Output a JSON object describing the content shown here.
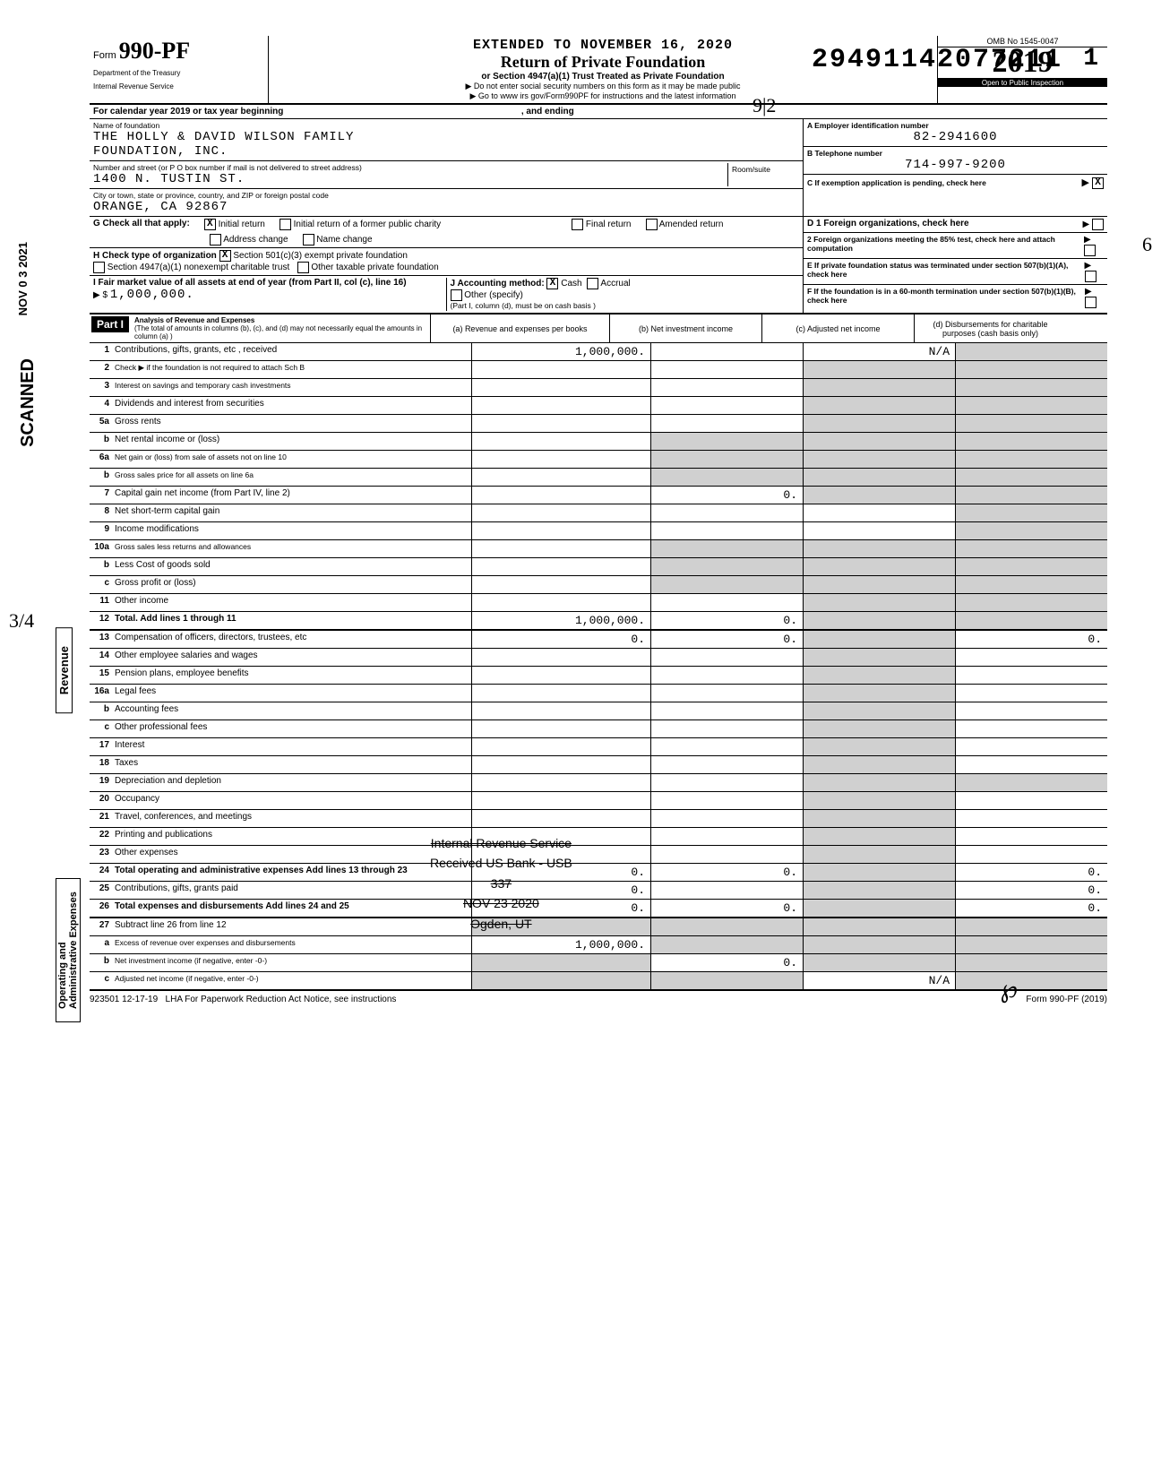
{
  "dln": "29491142077211",
  "page_num": "1",
  "header": {
    "form_prefix": "Form",
    "form_number": "990-PF",
    "dept1": "Department of the Treasury",
    "dept2": "Internal Revenue Service",
    "extended": "EXTENDED TO NOVEMBER 16, 2020",
    "title": "Return of Private Foundation",
    "subtitle": "or Section 4947(a)(1) Trust Treated as Private Foundation",
    "instr1": "▶ Do not enter social security numbers on this form as it may be made public",
    "instr2": "▶ Go to www irs gov/Form990PF for instructions and the latest information",
    "omb": "OMB No 1545-0047",
    "year": "2019",
    "open": "Open to Public Inspection"
  },
  "cal_year": "For calendar year 2019 or tax year beginning",
  "cal_year_end": ", and ending",
  "entity": {
    "name_label": "Name of foundation",
    "name1": "THE HOLLY & DAVID WILSON FAMILY",
    "name2": "FOUNDATION, INC.",
    "addr_label": "Number and street (or P O box number if mail is not delivered to street address)",
    "addr": "1400 N. TUSTIN ST.",
    "room_label": "Room/suite",
    "city_label": "City or town, state or province, country, and ZIP or foreign postal code",
    "city": "ORANGE, CA   92867",
    "ein_label": "A Employer identification number",
    "ein": "82-2941600",
    "phone_label": "B Telephone number",
    "phone": "714-997-9200",
    "c_label": "C If exemption application is pending, check here"
  },
  "g": {
    "label": "G  Check all that apply:",
    "opt1": "Initial return",
    "opt2": "Final return",
    "opt3": "Address change",
    "opt4": "Initial return of a former public charity",
    "opt5": "Amended return",
    "opt6": "Name change"
  },
  "d": {
    "d1": "D 1 Foreign organizations, check here",
    "d2": "2 Foreign organizations meeting the 85% test, check here and attach computation"
  },
  "h": {
    "label": "H  Check type of organization",
    "opt1": "Section 501(c)(3) exempt private foundation",
    "opt2": "Section 4947(a)(1) nonexempt charitable trust",
    "opt3": "Other taxable private foundation"
  },
  "e": {
    "label": "E  If private foundation status was terminated under section 507(b)(1)(A), check here"
  },
  "i": {
    "label": "I  Fair market value of all assets at end of year (from Part II, col (c), line 16)",
    "value": "1,000,000."
  },
  "j": {
    "label": "J  Accounting method:",
    "opt1": "Cash",
    "opt2": "Accrual",
    "opt3": "Other (specify)",
    "note": "(Part I, column (d), must be on cash basis )"
  },
  "f": {
    "label": "F  If the foundation is in a 60-month termination under section 507(b)(1)(B), check here"
  },
  "part1": {
    "tag": "Part I",
    "title": "Analysis of Revenue and Expenses",
    "note": "(The total of amounts in columns (b), (c), and (d) may not necessarily equal the amounts in column (a) )",
    "col_a": "(a) Revenue and expenses per books",
    "col_b": "(b) Net investment income",
    "col_c": "(c) Adjusted net income",
    "col_d": "(d) Disbursements for charitable purposes (cash basis only)"
  },
  "lines": {
    "l1": {
      "n": "1",
      "t": "Contributions, gifts, grants, etc , received",
      "a": "1,000,000.",
      "c": "N/A"
    },
    "l2": {
      "n": "2",
      "t": "Check ▶        if the foundation is not required to attach Sch B"
    },
    "l3": {
      "n": "3",
      "t": "Interest on savings and temporary cash investments"
    },
    "l4": {
      "n": "4",
      "t": "Dividends and interest from securities"
    },
    "l5a": {
      "n": "5a",
      "t": "Gross rents"
    },
    "l5b": {
      "n": "b",
      "t": "Net rental income or (loss)"
    },
    "l6a": {
      "n": "6a",
      "t": "Net gain or (loss) from sale of assets not on line 10"
    },
    "l6b": {
      "n": "b",
      "t": "Gross sales price for all assets on line 6a"
    },
    "l7": {
      "n": "7",
      "t": "Capital gain net income (from Part IV, line 2)",
      "b": "0."
    },
    "l8": {
      "n": "8",
      "t": "Net short-term capital gain"
    },
    "l9": {
      "n": "9",
      "t": "Income modifications"
    },
    "l10a": {
      "n": "10a",
      "t": "Gross sales less returns and allowances"
    },
    "l10b": {
      "n": "b",
      "t": "Less Cost of goods sold"
    },
    "l10c": {
      "n": "c",
      "t": "Gross profit or (loss)"
    },
    "l11": {
      "n": "11",
      "t": "Other income"
    },
    "l12": {
      "n": "12",
      "t": "Total. Add lines 1 through 11",
      "a": "1,000,000.",
      "b": "0."
    },
    "l13": {
      "n": "13",
      "t": "Compensation of officers, directors, trustees, etc",
      "a": "0.",
      "b": "0.",
      "d": "0."
    },
    "l14": {
      "n": "14",
      "t": "Other employee salaries and wages"
    },
    "l15": {
      "n": "15",
      "t": "Pension plans, employee benefits"
    },
    "l16a": {
      "n": "16a",
      "t": "Legal fees"
    },
    "l16b": {
      "n": "b",
      "t": "Accounting fees"
    },
    "l16c": {
      "n": "c",
      "t": "Other professional fees"
    },
    "l17": {
      "n": "17",
      "t": "Interest"
    },
    "l18": {
      "n": "18",
      "t": "Taxes"
    },
    "l19": {
      "n": "19",
      "t": "Depreciation and depletion"
    },
    "l20": {
      "n": "20",
      "t": "Occupancy"
    },
    "l21": {
      "n": "21",
      "t": "Travel, conferences, and meetings"
    },
    "l22": {
      "n": "22",
      "t": "Printing and publications"
    },
    "l23": {
      "n": "23",
      "t": "Other expenses"
    },
    "l24": {
      "n": "24",
      "t": "Total operating and administrative expenses  Add lines 13 through 23",
      "a": "0.",
      "b": "0.",
      "d": "0."
    },
    "l25": {
      "n": "25",
      "t": "Contributions, gifts, grants paid",
      "a": "0.",
      "d": "0."
    },
    "l26": {
      "n": "26",
      "t": "Total expenses and disbursements  Add lines 24 and 25",
      "a": "0.",
      "b": "0.",
      "d": "0."
    },
    "l27": {
      "n": "27",
      "t": "Subtract line 26 from line 12"
    },
    "l27a": {
      "n": "a",
      "t": "Excess of revenue over expenses and disbursements",
      "a": "1,000,000."
    },
    "l27b": {
      "n": "b",
      "t": "Net investment income (if negative, enter -0-)",
      "b": "0."
    },
    "l27c": {
      "n": "c",
      "t": "Adjusted net income (if negative, enter -0-)",
      "c": "N/A"
    }
  },
  "footer": {
    "code": "923501 12-17-19",
    "lha": "LHA  For Paperwork Reduction Act Notice, see instructions",
    "form": "Form 990-PF (2019)"
  },
  "side": {
    "revenue": "Revenue",
    "op": "Operating and Administrative Expenses",
    "scanned": "SCANNED",
    "date": "NOV 0 3 2021"
  },
  "stamp": {
    "l1": "Internal Revenue Service",
    "l2": "Received US Bank - USB",
    "l3": "337",
    "l4": "NOV 23 2020",
    "l5": "Ogden, UT"
  },
  "annot": {
    "top_right": "9|2",
    "far_right": "6",
    "left_frac": "3/4",
    "initial_right": "℘"
  }
}
